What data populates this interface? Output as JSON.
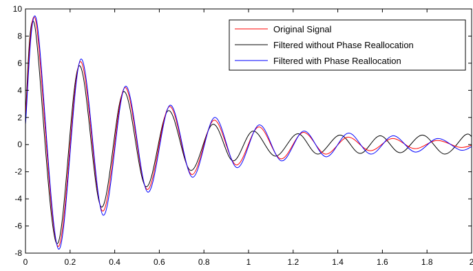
{
  "chart_data": {
    "type": "line",
    "title": "",
    "xlabel": "",
    "ylabel": "",
    "xlim": [
      0,
      2
    ],
    "ylim": [
      -8,
      10
    ],
    "x_ticks": [
      0,
      0.2,
      0.4,
      0.6,
      0.8,
      1,
      1.2,
      1.4,
      1.6,
      1.8,
      2
    ],
    "x_tick_labels": [
      "0",
      "0.2",
      "0.4",
      "0.6",
      "0.8",
      "1",
      "1.2",
      "1.4",
      "1.6",
      "1.8",
      "2"
    ],
    "y_ticks": [
      -8,
      -6,
      -4,
      -2,
      0,
      2,
      4,
      6,
      8,
      10
    ],
    "y_tick_labels": [
      "-8",
      "-6",
      "-4",
      "-2",
      "0",
      "2",
      "4",
      "6",
      "8",
      "10"
    ],
    "grid": false,
    "legend_position": "top-right",
    "series": [
      {
        "name": "Original Signal",
        "color": "#ff0000",
        "x": [
          0,
          0.045,
          0.145,
          0.245,
          0.345,
          0.445,
          0.545,
          0.645,
          0.745,
          0.845,
          0.945,
          1.045,
          1.145,
          1.245,
          1.345,
          1.445,
          1.545,
          1.645,
          1.745,
          1.845,
          1.945,
          2
        ],
        "y": [
          2.0,
          9.2,
          -7.5,
          6.1,
          -4.9,
          4.2,
          -3.3,
          2.8,
          -2.2,
          1.8,
          -1.5,
          1.3,
          -1.05,
          0.9,
          -0.7,
          0.55,
          -0.45,
          0.45,
          -0.3,
          0.3,
          -0.2,
          -0.05
        ]
      },
      {
        "name": "Filtered without Phase Reallocation",
        "color": "#000000",
        "x": [
          0,
          0.04,
          0.14,
          0.24,
          0.34,
          0.44,
          0.54,
          0.64,
          0.74,
          0.84,
          0.93,
          1.02,
          1.12,
          1.22,
          1.31,
          1.41,
          1.5,
          1.59,
          1.68,
          1.78,
          1.88,
          1.97,
          2
        ],
        "y": [
          2.2,
          8.9,
          -7.3,
          5.8,
          -4.6,
          3.9,
          -3.1,
          2.5,
          -1.9,
          1.5,
          -1.2,
          1.0,
          -0.85,
          0.8,
          -0.7,
          0.7,
          -0.65,
          0.65,
          -0.6,
          0.7,
          -0.7,
          0.7,
          0.6
        ]
      },
      {
        "name": "Filtered with Phase Reallocation",
        "color": "#0000ff",
        "x": [
          0,
          0.048,
          0.148,
          0.248,
          0.348,
          0.448,
          0.548,
          0.648,
          0.748,
          0.848,
          0.948,
          1.048,
          1.148,
          1.248,
          1.348,
          1.448,
          1.548,
          1.648,
          1.748,
          1.848,
          1.948,
          2
        ],
        "y": [
          1.5,
          9.3,
          -7.7,
          6.3,
          -5.2,
          4.3,
          -3.5,
          2.9,
          -2.4,
          2.0,
          -1.7,
          1.45,
          -1.2,
          1.0,
          -0.9,
          0.85,
          -0.7,
          0.65,
          -0.55,
          0.45,
          -0.4,
          -0.15
        ]
      }
    ]
  }
}
